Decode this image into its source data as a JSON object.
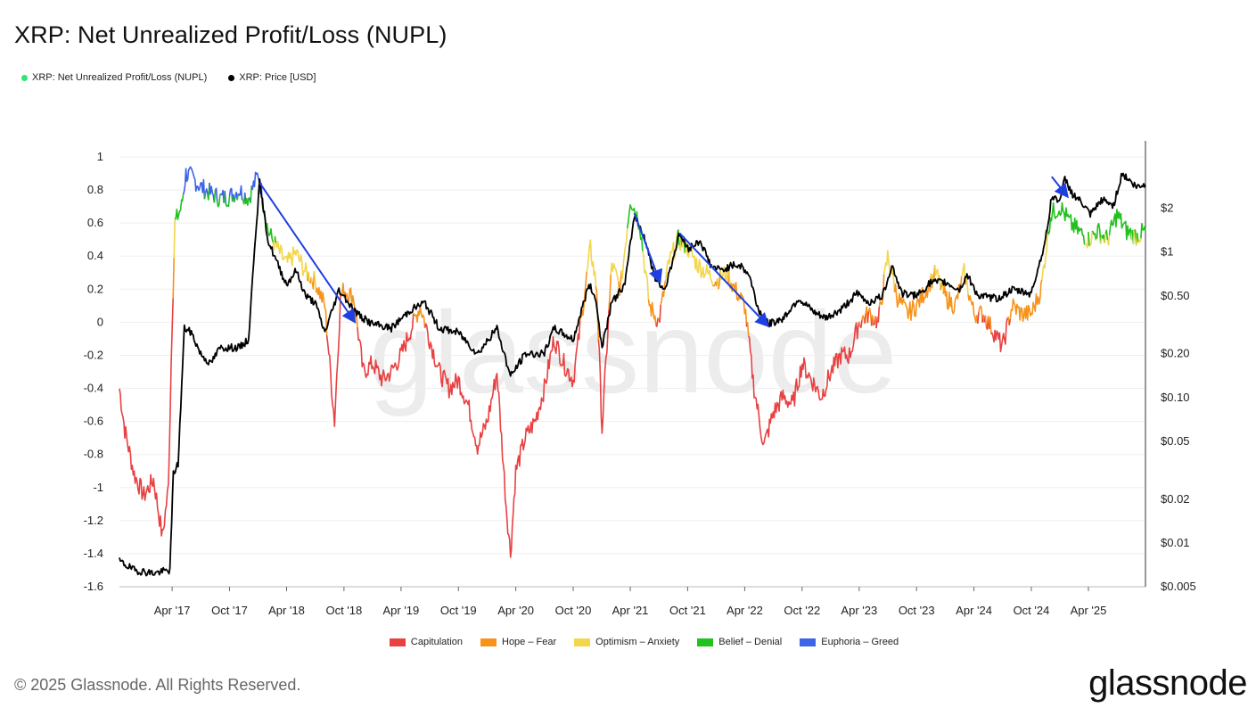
{
  "title": "XRP: Net Unrealized Profit/Loss (NUPL)",
  "legend_top": [
    {
      "label": "XRP: Net Unrealized Profit/Loss (NUPL)",
      "color": "#2ee57a"
    },
    {
      "label": "XRP: Price [USD]",
      "color": "#000000"
    }
  ],
  "legend_bottom": [
    {
      "label": "Capitulation",
      "color": "#e84142"
    },
    {
      "label": "Hope – Fear",
      "color": "#f7931a"
    },
    {
      "label": "Optimism – Anxiety",
      "color": "#f2d64b"
    },
    {
      "label": "Belief – Denial",
      "color": "#22c11e"
    },
    {
      "label": "Euphoria – Greed",
      "color": "#3d63e6"
    }
  ],
  "watermark": "glassnode",
  "footer": {
    "copyright": "© 2025 Glassnode. All Rights Reserved.",
    "brand": "glassnode"
  },
  "chart_data": {
    "type": "line",
    "title": "XRP: Net Unrealized Profit/Loss (NUPL)",
    "xlabel": "",
    "ylabel_left": "",
    "ylabel_right": "",
    "x_ticks": [
      "Apr '17",
      "Oct '17",
      "Apr '18",
      "Oct '18",
      "Apr '19",
      "Oct '19",
      "Apr '20",
      "Oct '20",
      "Apr '21",
      "Oct '21",
      "Apr '22",
      "Oct '22",
      "Apr '23",
      "Oct '23",
      "Apr '24",
      "Oct '24",
      "Apr '25"
    ],
    "x_range": [
      "2016-10-15",
      "2025-09-30"
    ],
    "y_left": {
      "range": [
        -1.6,
        1.0
      ],
      "ticks": [
        1,
        0.8,
        0.6,
        0.4,
        0.2,
        0,
        -0.2,
        -0.4,
        -0.6,
        -0.8,
        -1,
        -1.2,
        -1.4,
        -1.6
      ],
      "tick_labels": [
        "1",
        "0.8",
        "0.6",
        "0.4",
        "0.2",
        "0",
        "-0.2",
        "-0.4",
        "-0.6",
        "-0.8",
        "-1",
        "-1.2",
        "-1.4",
        "-1.6"
      ]
    },
    "y_right": {
      "scale": "log",
      "range": [
        0.005,
        5.5
      ],
      "ticks": [
        2,
        1,
        0.5,
        0.2,
        0.1,
        0.05,
        0.02,
        0.01,
        0.005
      ],
      "tick_labels": [
        "$2",
        "$1",
        "$0.50",
        "$0.20",
        "$0.10",
        "$0.05",
        "$0.02",
        "$0.01",
        "$0.005"
      ]
    },
    "grid": true,
    "legend_placement": "top-left and bottom-center",
    "zone_thresholds": [
      {
        "zone": "Capitulation",
        "max": 0
      },
      {
        "zone": "Hope – Fear",
        "min": 0,
        "max": 0.25
      },
      {
        "zone": "Optimism – Anxiety",
        "min": 0.25,
        "max": 0.5
      },
      {
        "zone": "Belief – Denial",
        "min": 0.5,
        "max": 0.75
      },
      {
        "zone": "Euphoria – Greed",
        "min": 0.75
      }
    ],
    "series": [
      {
        "name": "XRP: Net Unrealized Profit/Loss (NUPL)",
        "axis": "left",
        "points": [
          [
            "2016-10-15",
            -0.4
          ],
          [
            "2016-11-01",
            -0.65
          ],
          [
            "2016-12-01",
            -0.92
          ],
          [
            "2017-01-01",
            -1.05
          ],
          [
            "2017-02-01",
            -0.95
          ],
          [
            "2017-03-01",
            -1.3
          ],
          [
            "2017-03-20",
            -1.0
          ],
          [
            "2017-04-01",
            0.0
          ],
          [
            "2017-04-10",
            0.6
          ],
          [
            "2017-05-01",
            0.7
          ],
          [
            "2017-05-15",
            0.9
          ],
          [
            "2017-06-01",
            0.88
          ],
          [
            "2017-07-01",
            0.82
          ],
          [
            "2017-08-01",
            0.78
          ],
          [
            "2017-09-01",
            0.75
          ],
          [
            "2017-10-01",
            0.76
          ],
          [
            "2017-11-01",
            0.8
          ],
          [
            "2017-12-01",
            0.75
          ],
          [
            "2018-01-01",
            0.9
          ],
          [
            "2018-02-01",
            0.55
          ],
          [
            "2018-03-01",
            0.45
          ],
          [
            "2018-04-01",
            0.35
          ],
          [
            "2018-05-01",
            0.42
          ],
          [
            "2018-06-01",
            0.3
          ],
          [
            "2018-07-01",
            0.25
          ],
          [
            "2018-08-01",
            0.1
          ],
          [
            "2018-09-01",
            -0.6
          ],
          [
            "2018-09-20",
            0.15
          ],
          [
            "2018-10-01",
            0.2
          ],
          [
            "2018-11-01",
            0.15
          ],
          [
            "2018-12-01",
            -0.3
          ],
          [
            "2019-01-01",
            -0.25
          ],
          [
            "2019-02-01",
            -0.35
          ],
          [
            "2019-03-01",
            -0.3
          ],
          [
            "2019-04-01",
            -0.2
          ],
          [
            "2019-05-01",
            -0.05
          ],
          [
            "2019-06-01",
            0.1
          ],
          [
            "2019-07-01",
            -0.1
          ],
          [
            "2019-08-01",
            -0.3
          ],
          [
            "2019-09-01",
            -0.4
          ],
          [
            "2019-10-01",
            -0.35
          ],
          [
            "2019-11-01",
            -0.5
          ],
          [
            "2019-12-01",
            -0.75
          ],
          [
            "2020-01-01",
            -0.6
          ],
          [
            "2020-02-01",
            -0.3
          ],
          [
            "2020-03-01",
            -1.1
          ],
          [
            "2020-03-15",
            -1.4
          ],
          [
            "2020-04-01",
            -0.9
          ],
          [
            "2020-05-01",
            -0.7
          ],
          [
            "2020-06-01",
            -0.6
          ],
          [
            "2020-07-01",
            -0.4
          ],
          [
            "2020-08-01",
            -0.1
          ],
          [
            "2020-09-01",
            -0.25
          ],
          [
            "2020-10-01",
            -0.35
          ],
          [
            "2020-11-01",
            0.1
          ],
          [
            "2020-11-25",
            0.45
          ],
          [
            "2020-12-15",
            0.2
          ],
          [
            "2021-01-01",
            -0.65
          ],
          [
            "2021-02-01",
            0.35
          ],
          [
            "2021-03-01",
            0.2
          ],
          [
            "2021-04-01",
            0.75
          ],
          [
            "2021-05-01",
            0.6
          ],
          [
            "2021-06-01",
            0.1
          ],
          [
            "2021-07-01",
            0.0
          ],
          [
            "2021-08-01",
            0.35
          ],
          [
            "2021-09-01",
            0.5
          ],
          [
            "2021-10-01",
            0.45
          ],
          [
            "2021-11-01",
            0.35
          ],
          [
            "2021-12-01",
            0.3
          ],
          [
            "2022-01-01",
            0.25
          ],
          [
            "2022-02-01",
            0.3
          ],
          [
            "2022-03-01",
            0.2
          ],
          [
            "2022-04-01",
            0.1
          ],
          [
            "2022-05-01",
            -0.4
          ],
          [
            "2022-06-01",
            -0.75
          ],
          [
            "2022-07-01",
            -0.55
          ],
          [
            "2022-08-01",
            -0.45
          ],
          [
            "2022-09-01",
            -0.5
          ],
          [
            "2022-10-01",
            -0.25
          ],
          [
            "2022-11-01",
            -0.35
          ],
          [
            "2022-12-01",
            -0.45
          ],
          [
            "2023-01-01",
            -0.3
          ],
          [
            "2023-02-01",
            -0.2
          ],
          [
            "2023-03-01",
            -0.2
          ],
          [
            "2023-04-01",
            0.0
          ],
          [
            "2023-05-01",
            0.05
          ],
          [
            "2023-06-01",
            0.0
          ],
          [
            "2023-07-01",
            0.4
          ],
          [
            "2023-08-01",
            0.15
          ],
          [
            "2023-09-01",
            0.05
          ],
          [
            "2023-10-01",
            0.1
          ],
          [
            "2023-11-01",
            0.2
          ],
          [
            "2023-12-01",
            0.3
          ],
          [
            "2024-01-01",
            0.15
          ],
          [
            "2024-02-01",
            0.1
          ],
          [
            "2024-03-01",
            0.3
          ],
          [
            "2024-04-01",
            0.05
          ],
          [
            "2024-05-01",
            0.05
          ],
          [
            "2024-06-01",
            -0.05
          ],
          [
            "2024-07-01",
            -0.15
          ],
          [
            "2024-08-01",
            0.1
          ],
          [
            "2024-09-01",
            0.05
          ],
          [
            "2024-10-01",
            0.05
          ],
          [
            "2024-11-01",
            0.2
          ],
          [
            "2024-12-01",
            0.65
          ],
          [
            "2025-01-01",
            0.7
          ],
          [
            "2025-02-01",
            0.6
          ],
          [
            "2025-03-01",
            0.55
          ],
          [
            "2025-04-01",
            0.5
          ],
          [
            "2025-05-01",
            0.55
          ],
          [
            "2025-06-01",
            0.5
          ],
          [
            "2025-07-01",
            0.65
          ],
          [
            "2025-08-01",
            0.55
          ],
          [
            "2025-09-01",
            0.52
          ],
          [
            "2025-09-30",
            0.55
          ]
        ]
      },
      {
        "name": "XRP: Price [USD]",
        "axis": "right",
        "color": "#000000",
        "points": [
          [
            "2016-10-15",
            0.0075
          ],
          [
            "2016-12-01",
            0.0065
          ],
          [
            "2017-02-01",
            0.0062
          ],
          [
            "2017-03-25",
            0.0065
          ],
          [
            "2017-04-05",
            0.03
          ],
          [
            "2017-04-20",
            0.035
          ],
          [
            "2017-05-10",
            0.3
          ],
          [
            "2017-06-01",
            0.28
          ],
          [
            "2017-07-01",
            0.2
          ],
          [
            "2017-08-01",
            0.17
          ],
          [
            "2017-09-01",
            0.22
          ],
          [
            "2017-10-01",
            0.22
          ],
          [
            "2017-11-01",
            0.22
          ],
          [
            "2017-12-01",
            0.25
          ],
          [
            "2017-12-20",
            1.1
          ],
          [
            "2018-01-05",
            3.0
          ],
          [
            "2018-02-01",
            1.2
          ],
          [
            "2018-03-01",
            0.85
          ],
          [
            "2018-04-01",
            0.6
          ],
          [
            "2018-05-01",
            0.75
          ],
          [
            "2018-06-01",
            0.5
          ],
          [
            "2018-07-01",
            0.45
          ],
          [
            "2018-08-01",
            0.28
          ],
          [
            "2018-09-15",
            0.55
          ],
          [
            "2018-10-01",
            0.5
          ],
          [
            "2018-11-01",
            0.4
          ],
          [
            "2018-12-01",
            0.35
          ],
          [
            "2019-01-01",
            0.32
          ],
          [
            "2019-03-01",
            0.3
          ],
          [
            "2019-05-01",
            0.4
          ],
          [
            "2019-06-15",
            0.45
          ],
          [
            "2019-08-01",
            0.3
          ],
          [
            "2019-10-01",
            0.28
          ],
          [
            "2019-12-01",
            0.2
          ],
          [
            "2020-02-01",
            0.3
          ],
          [
            "2020-03-15",
            0.14
          ],
          [
            "2020-05-01",
            0.2
          ],
          [
            "2020-07-01",
            0.2
          ],
          [
            "2020-08-01",
            0.3
          ],
          [
            "2020-10-01",
            0.25
          ],
          [
            "2020-11-20",
            0.6
          ],
          [
            "2020-12-10",
            0.5
          ],
          [
            "2021-01-01",
            0.22
          ],
          [
            "2021-02-01",
            0.45
          ],
          [
            "2021-03-15",
            0.6
          ],
          [
            "2021-04-14",
            1.8
          ],
          [
            "2021-05-15",
            1.3
          ],
          [
            "2021-06-20",
            0.65
          ],
          [
            "2021-07-20",
            0.55
          ],
          [
            "2021-09-05",
            1.35
          ],
          [
            "2021-10-01",
            1.05
          ],
          [
            "2021-11-10",
            1.2
          ],
          [
            "2021-12-15",
            0.8
          ],
          [
            "2022-01-15",
            0.75
          ],
          [
            "2022-02-15",
            0.8
          ],
          [
            "2022-03-15",
            0.82
          ],
          [
            "2022-04-15",
            0.7
          ],
          [
            "2022-05-15",
            0.4
          ],
          [
            "2022-06-15",
            0.32
          ],
          [
            "2022-08-01",
            0.35
          ],
          [
            "2022-09-20",
            0.48
          ],
          [
            "2022-11-10",
            0.38
          ],
          [
            "2022-12-15",
            0.35
          ],
          [
            "2023-02-01",
            0.4
          ],
          [
            "2023-03-25",
            0.52
          ],
          [
            "2023-05-01",
            0.45
          ],
          [
            "2023-06-15",
            0.5
          ],
          [
            "2023-07-14",
            0.82
          ],
          [
            "2023-08-15",
            0.52
          ],
          [
            "2023-10-01",
            0.5
          ],
          [
            "2023-11-15",
            0.62
          ],
          [
            "2024-01-01",
            0.62
          ],
          [
            "2024-02-15",
            0.55
          ],
          [
            "2024-03-10",
            0.7
          ],
          [
            "2024-04-15",
            0.5
          ],
          [
            "2024-06-15",
            0.48
          ],
          [
            "2024-08-01",
            0.55
          ],
          [
            "2024-10-01",
            0.52
          ],
          [
            "2024-11-15",
            1.2
          ],
          [
            "2024-12-05",
            2.4
          ],
          [
            "2025-01-01",
            2.3
          ],
          [
            "2025-01-16",
            3.2
          ],
          [
            "2025-02-10",
            2.5
          ],
          [
            "2025-03-10",
            2.2
          ],
          [
            "2025-04-07",
            1.8
          ],
          [
            "2025-05-15",
            2.3
          ],
          [
            "2025-06-20",
            2.1
          ],
          [
            "2025-07-18",
            3.5
          ],
          [
            "2025-08-10",
            3.1
          ],
          [
            "2025-09-01",
            2.8
          ],
          [
            "2025-09-30",
            2.9
          ]
        ]
      }
    ],
    "annotations": [
      {
        "type": "arrow",
        "color": "#1f3fe0",
        "from": [
          "2018-01-05",
          3.0
        ],
        "to": [
          "2018-11-05",
          0.33
        ]
      },
      {
        "type": "arrow",
        "color": "#1f3fe0",
        "from": [
          "2021-04-14",
          1.85
        ],
        "to": [
          "2021-07-05",
          0.62
        ]
      },
      {
        "type": "arrow",
        "color": "#1f3fe0",
        "from": [
          "2021-09-05",
          1.35
        ],
        "to": [
          "2022-06-15",
          0.31
        ]
      },
      {
        "type": "arrow",
        "color": "#1f3fe0",
        "from": [
          "2024-12-05",
          3.3
        ],
        "to": [
          "2025-01-25",
          2.4
        ]
      }
    ]
  }
}
